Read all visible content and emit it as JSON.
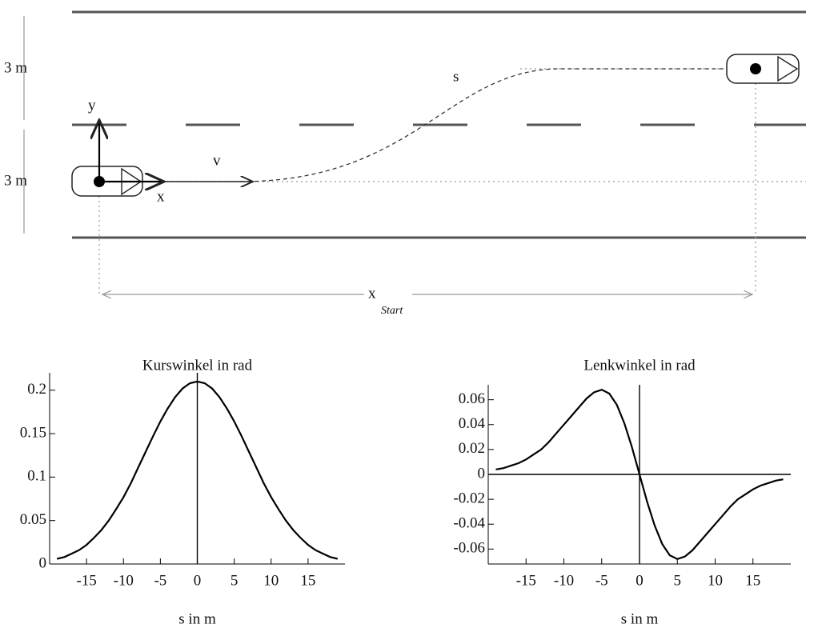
{
  "diagram": {
    "lane_width_top": "3 m",
    "lane_width_bottom": "3 m",
    "axis_y": "y",
    "axis_x": "x",
    "velocity": "v",
    "path": "s",
    "distance": "x",
    "distance_subscript": "Start"
  },
  "chart_data": [
    {
      "type": "line",
      "title": "Kurswinkel in rad",
      "x_label": "s in m",
      "x": [
        -19,
        -18,
        -17,
        -16,
        -15,
        -14,
        -13,
        -12,
        -11,
        -10,
        -9,
        -8,
        -7,
        -6,
        -5,
        -4,
        -3,
        -2,
        -1,
        0,
        1,
        2,
        3,
        4,
        5,
        6,
        7,
        8,
        9,
        10,
        11,
        12,
        13,
        14,
        15,
        16,
        17,
        18,
        19
      ],
      "values": [
        0.006,
        0.008,
        0.012,
        0.016,
        0.022,
        0.03,
        0.039,
        0.05,
        0.063,
        0.077,
        0.093,
        0.111,
        0.129,
        0.147,
        0.164,
        0.179,
        0.192,
        0.202,
        0.208,
        0.21,
        0.208,
        0.202,
        0.192,
        0.179,
        0.164,
        0.147,
        0.129,
        0.111,
        0.093,
        0.077,
        0.063,
        0.05,
        0.039,
        0.03,
        0.022,
        0.016,
        0.012,
        0.008,
        0.006
      ],
      "color": "#000000",
      "xlim": [
        -20,
        20
      ],
      "xticks": [
        -15,
        -10,
        -5,
        0,
        5,
        10,
        15
      ],
      "ylim": [
        0,
        0.22
      ],
      "yticks": [
        0,
        0.05,
        0.1,
        0.15,
        0.2
      ]
    },
    {
      "type": "line",
      "title": "Lenkwinkel in rad",
      "x_label": "s in m",
      "x": [
        -19,
        -18,
        -17,
        -16,
        -15,
        -14,
        -13,
        -12,
        -11,
        -10,
        -9,
        -8,
        -7,
        -6,
        -5,
        -4,
        -3,
        -2,
        -1,
        0,
        1,
        2,
        3,
        4,
        5,
        6,
        7,
        8,
        9,
        10,
        11,
        12,
        13,
        14,
        15,
        16,
        17,
        18,
        19
      ],
      "values": [
        0.004,
        0.005,
        0.007,
        0.009,
        0.012,
        0.016,
        0.02,
        0.026,
        0.033,
        0.04,
        0.047,
        0.054,
        0.061,
        0.066,
        0.068,
        0.065,
        0.056,
        0.041,
        0.022,
        0,
        -0.022,
        -0.041,
        -0.056,
        -0.065,
        -0.068,
        -0.066,
        -0.061,
        -0.054,
        -0.047,
        -0.04,
        -0.033,
        -0.026,
        -0.02,
        -0.016,
        -0.012,
        -0.009,
        -0.007,
        -0.005,
        -0.004
      ],
      "color": "#000000",
      "xlim": [
        -20,
        20
      ],
      "xticks": [
        -15,
        -10,
        -5,
        0,
        5,
        10,
        15
      ],
      "ylim": [
        -0.072,
        0.072
      ],
      "yticks": [
        0.06,
        0.04,
        0.02,
        0,
        -0.02,
        -0.04,
        -0.06
      ]
    }
  ]
}
